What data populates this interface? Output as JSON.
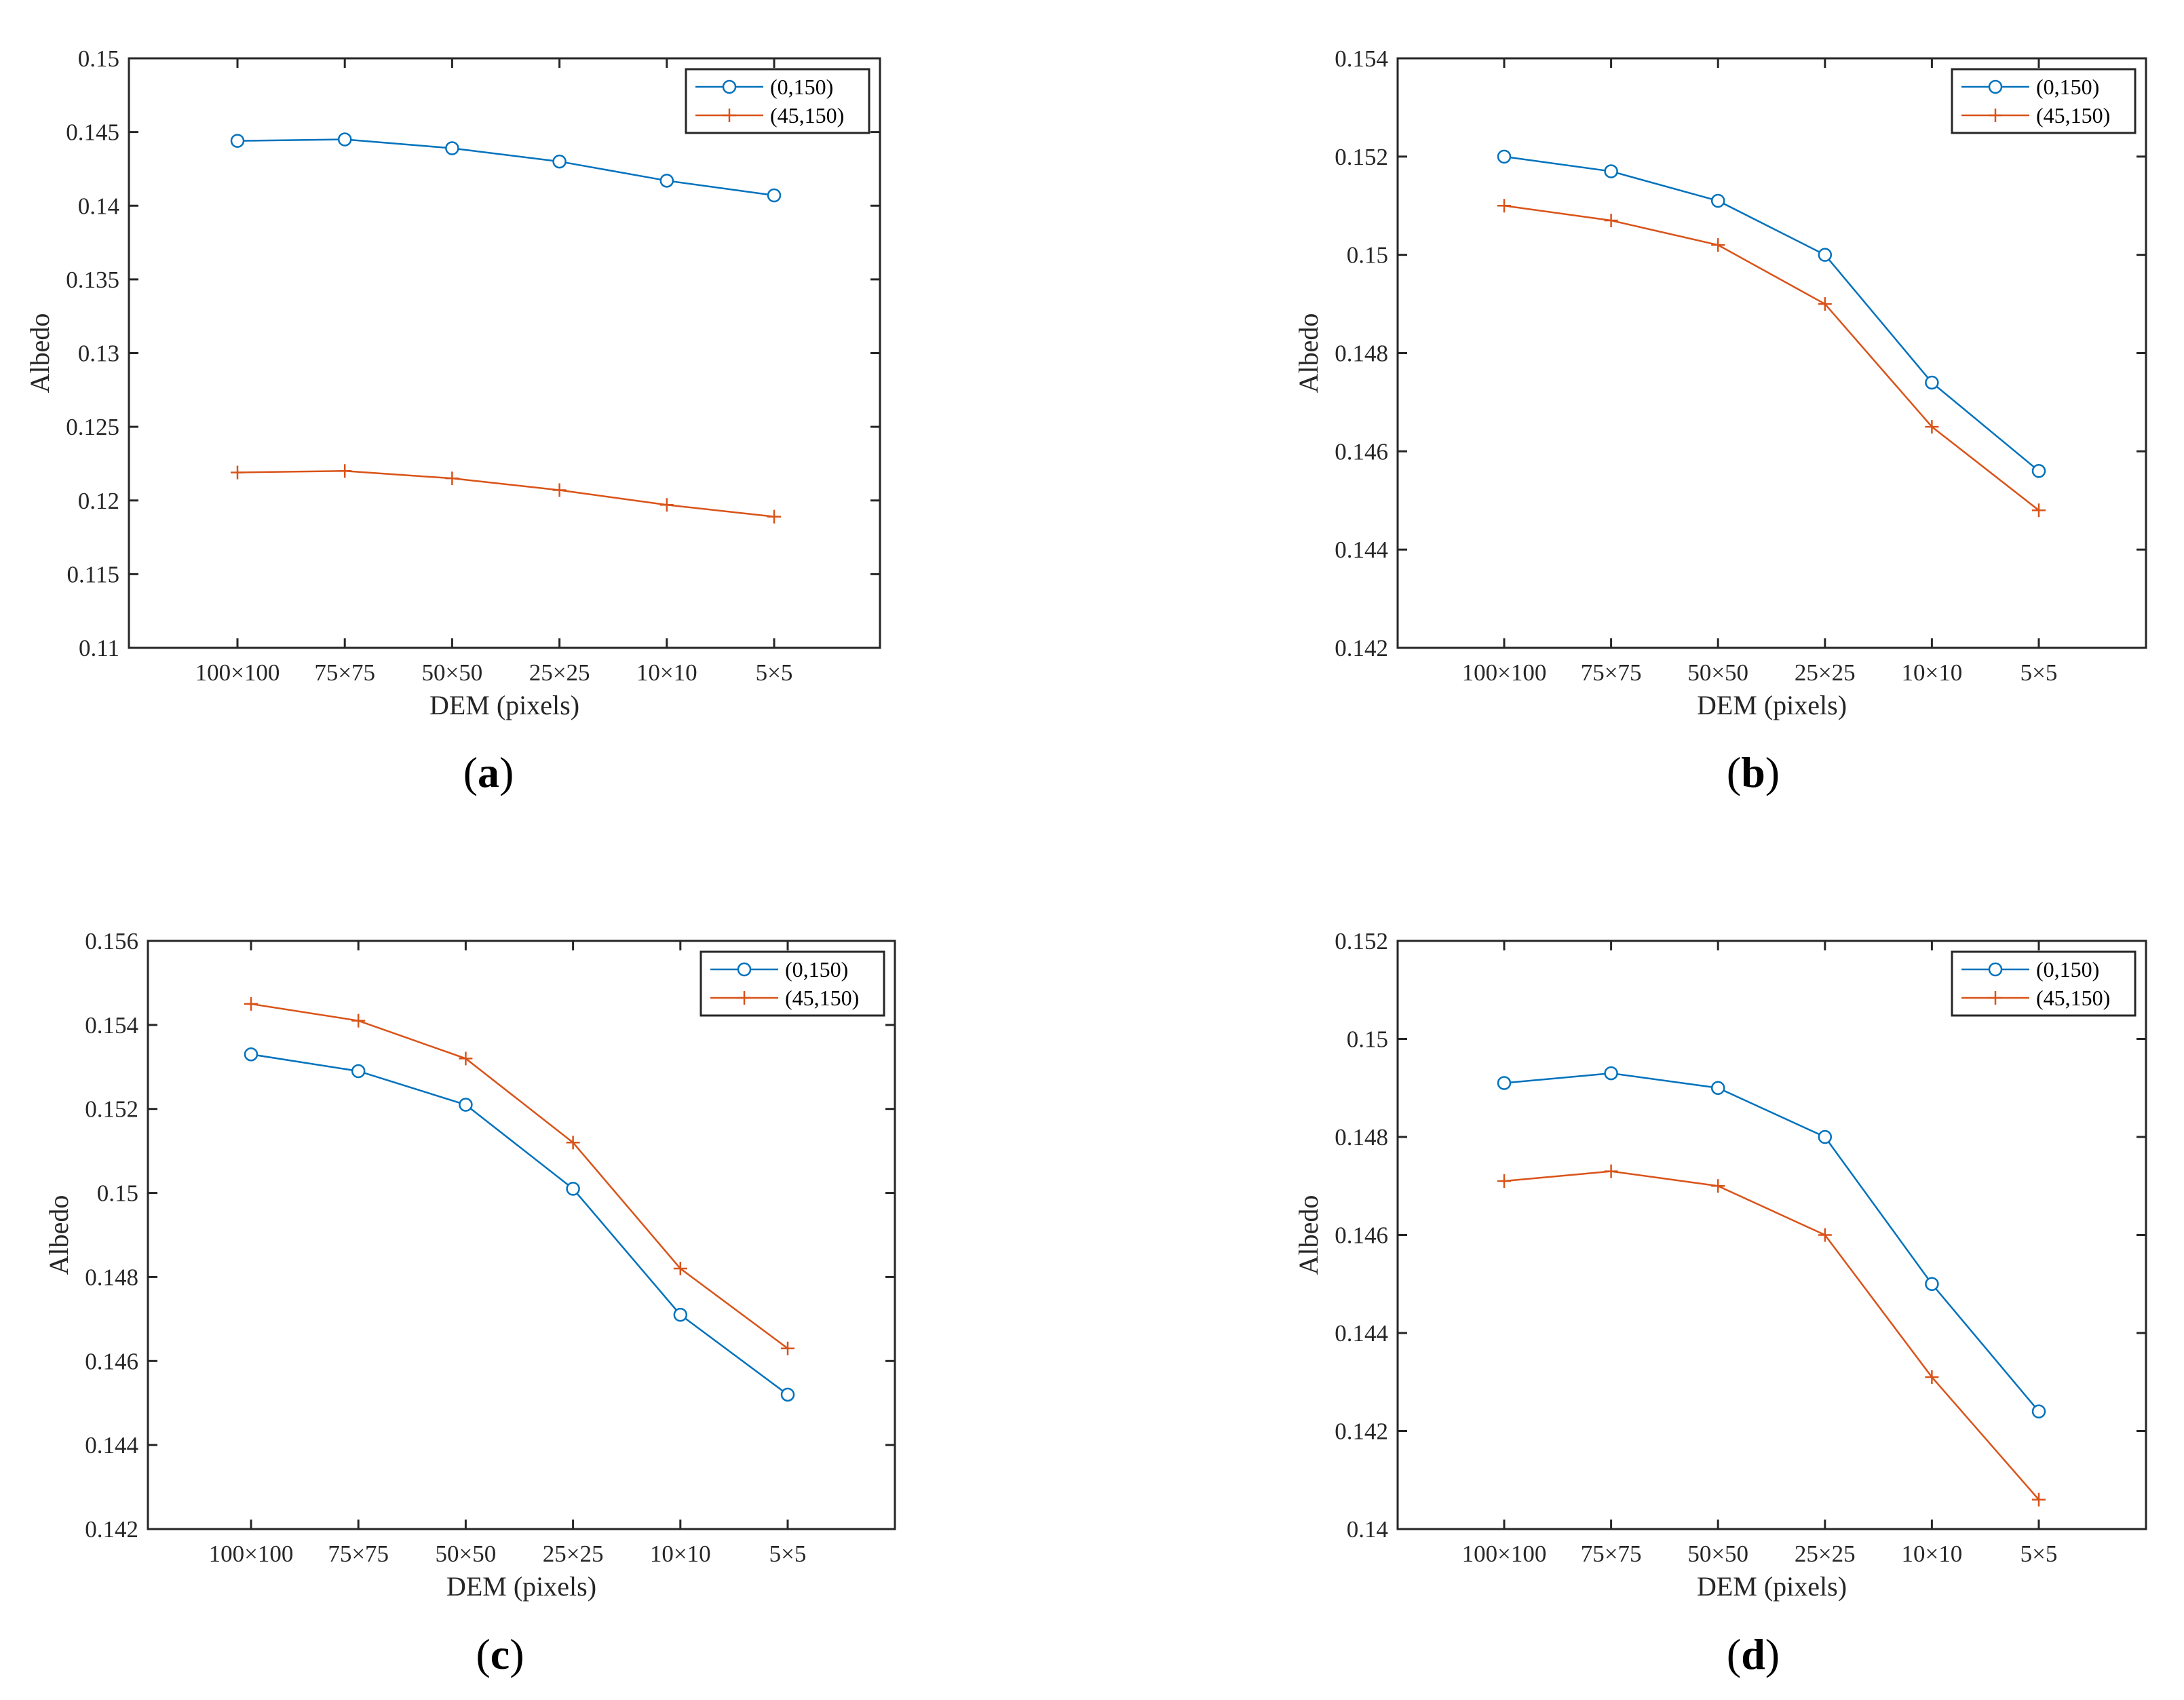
{
  "series_colors": [
    "#0072BD",
    "#D95319"
  ],
  "chart_data": [
    {
      "type": "line",
      "panel": "a",
      "caption_open": "(",
      "caption_letter": "a",
      "caption_close": ")",
      "categories": [
        "100×100",
        "75×75",
        "50×50",
        "25×25",
        "10×10",
        "5×5"
      ],
      "xlabel": "DEM (pixels)",
      "ylabel": "Albedo",
      "ylim": [
        0.11,
        0.15
      ],
      "yticks": [
        0.11,
        0.115,
        0.12,
        0.125,
        0.13,
        0.135,
        0.14,
        0.145,
        0.15
      ],
      "ytick_labels": [
        "0.11",
        "0.115",
        "0.12",
        "0.125",
        "0.13",
        "0.135",
        "0.14",
        "0.145",
        "0.15"
      ],
      "legend_position": "top-right",
      "series": [
        {
          "name": "(0,150)",
          "marker": "circle",
          "values": [
            0.1444,
            0.1445,
            0.1439,
            0.143,
            0.1417,
            0.1407
          ]
        },
        {
          "name": "(45,150)",
          "marker": "plus",
          "values": [
            0.1219,
            0.122,
            0.1215,
            0.1207,
            0.1197,
            0.1189
          ]
        }
      ]
    },
    {
      "type": "line",
      "panel": "b",
      "caption_open": "(",
      "caption_letter": "b",
      "caption_close": ")",
      "categories": [
        "100×100",
        "75×75",
        "50×50",
        "25×25",
        "10×10",
        "5×5"
      ],
      "xlabel": "DEM (pixels)",
      "ylabel": "Albedo",
      "ylim": [
        0.142,
        0.154
      ],
      "yticks": [
        0.142,
        0.144,
        0.146,
        0.148,
        0.15,
        0.152,
        0.154
      ],
      "ytick_labels": [
        "0.142",
        "0.144",
        "0.146",
        "0.148",
        "0.15",
        "0.152",
        "0.154"
      ],
      "legend_position": "top-right",
      "series": [
        {
          "name": "(0,150)",
          "marker": "circle",
          "values": [
            0.152,
            0.1517,
            0.1511,
            0.15,
            0.1474,
            0.1456
          ]
        },
        {
          "name": "(45,150)",
          "marker": "plus",
          "values": [
            0.151,
            0.1507,
            0.1502,
            0.149,
            0.1465,
            0.1448
          ]
        }
      ]
    },
    {
      "type": "line",
      "panel": "c",
      "caption_open": "(",
      "caption_letter": "c",
      "caption_close": ")",
      "categories": [
        "100×100",
        "75×75",
        "50×50",
        "25×25",
        "10×10",
        "5×5"
      ],
      "xlabel": "DEM (pixels)",
      "ylabel": "Albedo",
      "ylim": [
        0.142,
        0.156
      ],
      "yticks": [
        0.142,
        0.144,
        0.146,
        0.148,
        0.15,
        0.152,
        0.154,
        0.156
      ],
      "ytick_labels": [
        "0.142",
        "0.144",
        "0.146",
        "0.148",
        "0.15",
        "0.152",
        "0.154",
        "0.156"
      ],
      "legend_position": "top-right",
      "series": [
        {
          "name": "(0,150)",
          "marker": "circle",
          "values": [
            0.1533,
            0.1529,
            0.1521,
            0.1501,
            0.1471,
            0.1452
          ]
        },
        {
          "name": "(45,150)",
          "marker": "plus",
          "values": [
            0.1545,
            0.1541,
            0.1532,
            0.1512,
            0.1482,
            0.1463
          ]
        }
      ]
    },
    {
      "type": "line",
      "panel": "d",
      "caption_open": "(",
      "caption_letter": "d",
      "caption_close": ")",
      "categories": [
        "100×100",
        "75×75",
        "50×50",
        "25×25",
        "10×10",
        "5×5"
      ],
      "xlabel": "DEM (pixels)",
      "ylabel": "Albedo",
      "ylim": [
        0.14,
        0.152
      ],
      "yticks": [
        0.14,
        0.142,
        0.144,
        0.146,
        0.148,
        0.15,
        0.152
      ],
      "ytick_labels": [
        "0.14",
        "0.142",
        "0.144",
        "0.146",
        "0.148",
        "0.15",
        "0.152"
      ],
      "legend_position": "top-right",
      "series": [
        {
          "name": "(0,150)",
          "marker": "circle",
          "values": [
            0.1491,
            0.1493,
            0.149,
            0.148,
            0.145,
            0.1424
          ]
        },
        {
          "name": "(45,150)",
          "marker": "plus",
          "values": [
            0.1471,
            0.1473,
            0.147,
            0.146,
            0.1431,
            0.1406
          ]
        }
      ]
    }
  ]
}
